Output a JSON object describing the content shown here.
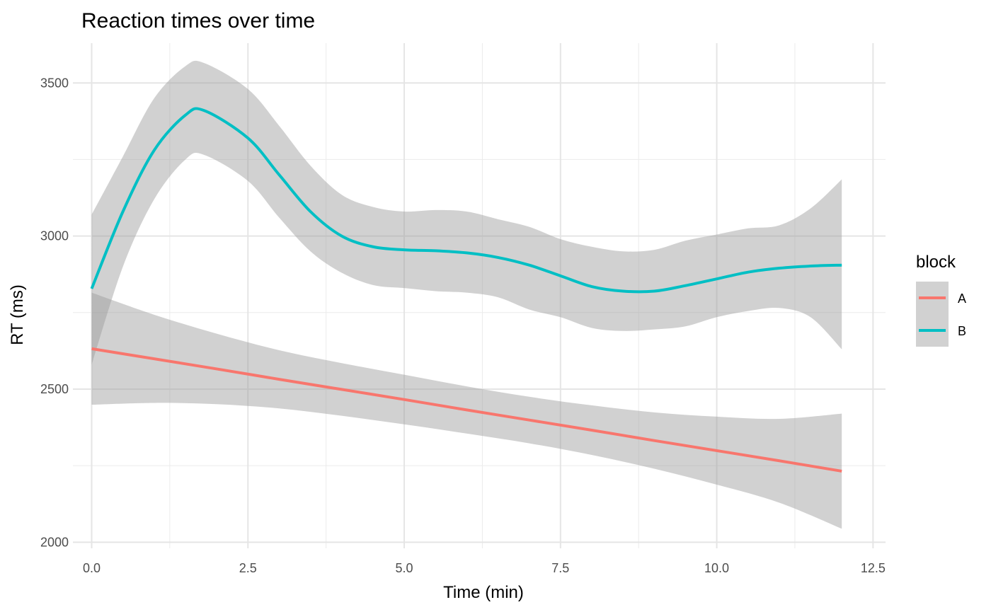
{
  "chart_data": {
    "type": "line",
    "title": "Reaction times over time",
    "xlabel": "Time (min)",
    "ylabel": "RT (ms)",
    "xlim": [
      -0.3,
      12.7
    ],
    "ylim": [
      1980,
      3630
    ],
    "x_ticks": [
      0.0,
      2.5,
      5.0,
      7.5,
      10.0,
      12.5
    ],
    "x_tick_labels": [
      "0.0",
      "2.5",
      "5.0",
      "7.5",
      "10.0",
      "12.5"
    ],
    "y_ticks": [
      2000,
      2500,
      3000,
      3500
    ],
    "y_tick_labels": [
      "2000",
      "2500",
      "3000",
      "3500"
    ],
    "grid": true,
    "legend": {
      "title": "block",
      "position": "right"
    },
    "band_color": "#999999",
    "series": [
      {
        "name": "A",
        "color": "#F8766D",
        "x": [
          0,
          1,
          2,
          3,
          4,
          5,
          6,
          7,
          8,
          9,
          10,
          11,
          12
        ],
        "y": [
          2632,
          2599,
          2566,
          2532,
          2499,
          2466,
          2432,
          2399,
          2366,
          2332,
          2299,
          2266,
          2232
        ],
        "lower": [
          2449,
          2455,
          2451,
          2437,
          2413,
          2385,
          2355,
          2323,
          2285,
          2240,
          2188,
          2129,
          2044
        ],
        "upper": [
          2815,
          2743,
          2681,
          2627,
          2585,
          2547,
          2509,
          2475,
          2447,
          2424,
          2410,
          2403,
          2420
        ]
      },
      {
        "name": "B",
        "color": "#00BFC4",
        "x": [
          0,
          0.5,
          1,
          1.5,
          1.8,
          2.5,
          3,
          3.5,
          4,
          4.5,
          5,
          5.5,
          6,
          6.5,
          7,
          7.5,
          8,
          8.5,
          9,
          9.5,
          10,
          10.5,
          11,
          11.5,
          12
        ],
        "y": [
          2828,
          3080,
          3280,
          3395,
          3410,
          3320,
          3200,
          3080,
          3000,
          2965,
          2955,
          2952,
          2945,
          2930,
          2905,
          2870,
          2835,
          2820,
          2820,
          2838,
          2860,
          2882,
          2895,
          2902,
          2905
        ],
        "lower": [
          2580,
          2900,
          3120,
          3250,
          3265,
          3180,
          3060,
          2950,
          2880,
          2840,
          2830,
          2820,
          2815,
          2800,
          2760,
          2735,
          2700,
          2690,
          2695,
          2705,
          2735,
          2755,
          2765,
          2735,
          2630
        ],
        "upper": [
          3070,
          3260,
          3450,
          3555,
          3565,
          3480,
          3360,
          3230,
          3135,
          3095,
          3080,
          3085,
          3080,
          3055,
          3030,
          2990,
          2965,
          2950,
          2955,
          2985,
          3005,
          3025,
          3035,
          3090,
          3185
        ]
      }
    ]
  }
}
